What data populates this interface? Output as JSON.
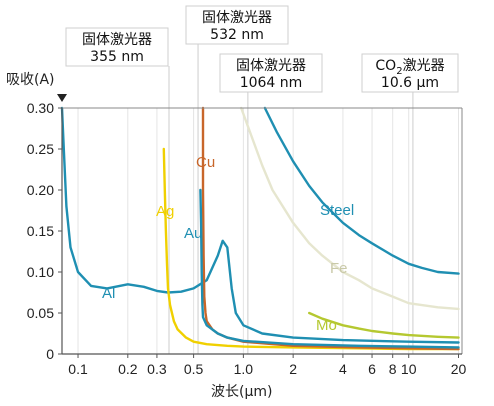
{
  "chart_data": {
    "type": "line",
    "xlabel": "波长(μm)",
    "ylabel": "吸收(A)",
    "x_scale": "log",
    "xlim": [
      0.08,
      21
    ],
    "ylim": [
      0,
      0.3
    ],
    "x_ticks": [
      {
        "value": 0.1,
        "label": "0.1"
      },
      {
        "value": 0.2,
        "label": "0.2"
      },
      {
        "value": 0.3,
        "label": "0.3"
      },
      {
        "value": 0.5,
        "label": "0.5"
      },
      {
        "value": 1.0,
        "label": "1.0"
      },
      {
        "value": 2,
        "label": "2"
      },
      {
        "value": 4,
        "label": "4"
      },
      {
        "value": 6,
        "label": "6"
      },
      {
        "value": 8,
        "label": "8"
      },
      {
        "value": 10,
        "label": "10"
      },
      {
        "value": 20,
        "label": "20"
      }
    ],
    "y_ticks": [
      {
        "value": 0,
        "label": "0"
      },
      {
        "value": 0.05,
        "label": "0.05"
      },
      {
        "value": 0.1,
        "label": "0.10"
      },
      {
        "value": 0.15,
        "label": "0.15"
      },
      {
        "value": 0.2,
        "label": "0.20"
      },
      {
        "value": 0.25,
        "label": "0.25"
      },
      {
        "value": 0.3,
        "label": "0.30"
      }
    ],
    "series": [
      {
        "name": "Al",
        "color": "#1f8fb2",
        "x": [
          0.08,
          0.082,
          0.085,
          0.09,
          0.1,
          0.12,
          0.15,
          0.2,
          0.25,
          0.3,
          0.35,
          0.42,
          0.5,
          0.6,
          0.7,
          0.75,
          0.8,
          0.85,
          0.9,
          1.0,
          1.3,
          2,
          4,
          10,
          20
        ],
        "y": [
          0.3,
          0.25,
          0.18,
          0.13,
          0.1,
          0.083,
          0.08,
          0.085,
          0.082,
          0.077,
          0.075,
          0.076,
          0.08,
          0.09,
          0.12,
          0.138,
          0.13,
          0.08,
          0.05,
          0.035,
          0.025,
          0.02,
          0.017,
          0.015,
          0.014
        ]
      },
      {
        "name": "Ag",
        "color": "#f0d000",
        "x": [
          0.33,
          0.335,
          0.34,
          0.345,
          0.35,
          0.36,
          0.38,
          0.4,
          0.45,
          0.5,
          0.6,
          0.8,
          1.0,
          2,
          5,
          10,
          20
        ],
        "y": [
          0.25,
          0.2,
          0.15,
          0.11,
          0.08,
          0.06,
          0.04,
          0.03,
          0.02,
          0.015,
          0.012,
          0.01,
          0.009,
          0.008,
          0.007,
          0.006,
          0.006
        ]
      },
      {
        "name": "Cu",
        "color": "#c8662a",
        "x": [
          0.57,
          0.57,
          0.575,
          0.58,
          0.59,
          0.6,
          0.65,
          0.7,
          0.8,
          1.0,
          2,
          5,
          10,
          20
        ],
        "y": [
          0.3,
          0.2,
          0.12,
          0.07,
          0.05,
          0.04,
          0.03,
          0.025,
          0.02,
          0.015,
          0.01,
          0.008,
          0.007,
          0.006
        ]
      },
      {
        "name": "Au",
        "color": "#1f8fb2",
        "x": [
          0.55,
          0.555,
          0.56,
          0.565,
          0.57,
          0.6,
          0.7,
          0.8,
          1.0,
          2,
          5,
          10,
          20
        ],
        "y": [
          0.2,
          0.16,
          0.1,
          0.06,
          0.045,
          0.035,
          0.025,
          0.02,
          0.016,
          0.012,
          0.01,
          0.009,
          0.008
        ]
      },
      {
        "name": "Steel",
        "color": "#1f8fb2",
        "x": [
          1.35,
          1.6,
          2,
          2.5,
          3,
          4,
          5,
          6,
          8,
          10,
          12,
          15,
          20
        ],
        "y": [
          0.3,
          0.27,
          0.235,
          0.205,
          0.185,
          0.16,
          0.145,
          0.135,
          0.12,
          0.11,
          0.105,
          0.1,
          0.098
        ]
      },
      {
        "name": "Fe",
        "color": "#e6e6cf",
        "x": [
          0.97,
          1.1,
          1.3,
          1.5,
          2,
          2.5,
          3,
          4,
          5,
          6,
          8,
          10,
          15,
          20
        ],
        "y": [
          0.3,
          0.27,
          0.23,
          0.2,
          0.16,
          0.135,
          0.12,
          0.1,
          0.09,
          0.08,
          0.07,
          0.062,
          0.057,
          0.055
        ]
      },
      {
        "name": "Mo",
        "color": "#b5c830",
        "x": [
          2.5,
          3,
          4,
          5,
          6,
          8,
          10,
          15,
          20
        ],
        "y": [
          0.05,
          0.043,
          0.035,
          0.031,
          0.028,
          0.025,
          0.023,
          0.021,
          0.02
        ]
      }
    ],
    "annotations": [
      {
        "line1": "固体激光器",
        "line2": "355 nm",
        "x": 0.355
      },
      {
        "line1": "固体激光器",
        "line2": "532 nm",
        "x": 0.532
      },
      {
        "line1": "固体激光器",
        "line2": "1064 nm",
        "x": 1.064
      },
      {
        "line1": "CO",
        "sub": "2",
        "line1_rest": "激光器",
        "line2": "10.6 μm",
        "x": 10.6
      }
    ]
  }
}
